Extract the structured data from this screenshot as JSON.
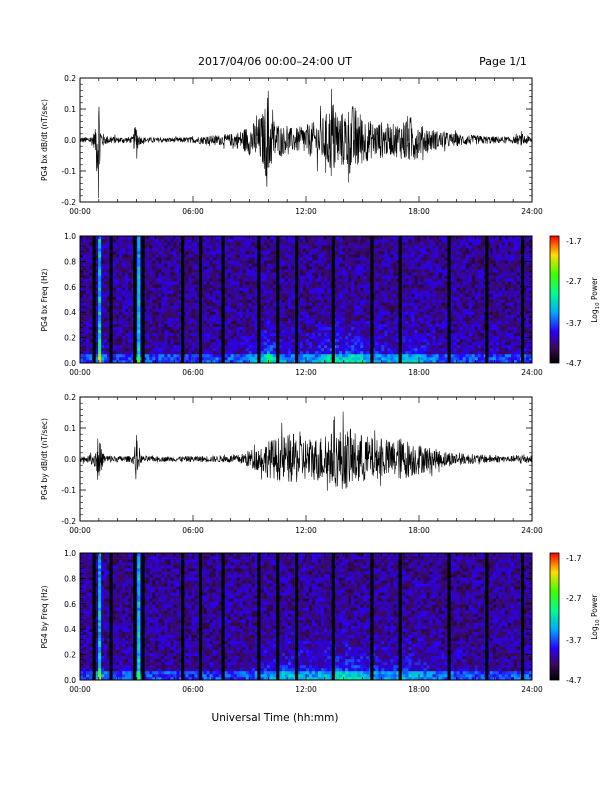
{
  "header": {
    "title": "2017/04/06  00:00–24:00 UT",
    "page": "Page 1/1"
  },
  "time_axis": {
    "ticks": [
      "00:00",
      "06:00",
      "12:00",
      "18:00",
      "24:00"
    ],
    "xlabel": "Universal Time (hh:mm)"
  },
  "colorbar": {
    "tick_labels": [
      "-1.7",
      "-2.7",
      "-3.7",
      "-4.7"
    ],
    "label": "Log10 Power"
  },
  "chart_data": [
    {
      "type": "line",
      "id": "bx-waveform",
      "ylabel": "PG4 bx dB/dt (nT/sec)",
      "xlim_hours": [
        0,
        24
      ],
      "ylim": [
        -0.2,
        0.2
      ],
      "yticks": [
        "0.2",
        "0.1",
        "0.0",
        "-0.1",
        "-0.2"
      ],
      "series": [
        {
          "x_hours": [
            0,
            0.5,
            0.8,
            0.95,
            1.0,
            1.05,
            1.1,
            1.3,
            2,
            2.8,
            3.0,
            3.05,
            3.1,
            3.3,
            4,
            5,
            6,
            6.3,
            7,
            8,
            8.5,
            9,
            9.3,
            9.6,
            9.8,
            9.9,
            10,
            10.1,
            10.3,
            10.6,
            11,
            11.5,
            12,
            12.5,
            13,
            13.2,
            13.4,
            13.6,
            14,
            14.4,
            14.8,
            15,
            15.5,
            16,
            16.5,
            17,
            17.4,
            17.8,
            18,
            18.5,
            19,
            20,
            21,
            22,
            23,
            23.5,
            24
          ],
          "amplitude_envelope": [
            0.01,
            0.01,
            0.03,
            0.18,
            0.2,
            0.12,
            0.04,
            0.015,
            0.01,
            0.01,
            0.07,
            0.05,
            0.02,
            0.01,
            0.008,
            0.008,
            0.01,
            0.012,
            0.015,
            0.02,
            0.03,
            0.05,
            0.06,
            0.08,
            0.1,
            0.15,
            0.18,
            0.1,
            0.07,
            0.05,
            0.04,
            0.04,
            0.05,
            0.06,
            0.08,
            0.1,
            0.14,
            0.1,
            0.09,
            0.12,
            0.1,
            0.08,
            0.06,
            0.06,
            0.05,
            0.06,
            0.08,
            0.07,
            0.05,
            0.04,
            0.03,
            0.02,
            0.015,
            0.012,
            0.01,
            0.02,
            0.01
          ]
        }
      ]
    },
    {
      "type": "heatmap",
      "id": "bx-spectrogram",
      "ylabel": "PG4 bx Freq (Hz)",
      "xlim_hours": [
        0,
        24
      ],
      "ylim": [
        0,
        1.0
      ],
      "yticks": [
        "1.0",
        "0.8",
        "0.6",
        "0.4",
        "0.2",
        "0.0"
      ],
      "zlim": [
        -4.7,
        -1.7
      ],
      "data_gaps_hours": [
        0.75,
        1.65,
        2.9,
        3.35,
        5.45,
        6.4,
        7.6,
        9.5,
        10.5,
        11.5,
        13.45,
        15.5,
        17.0,
        19.6,
        21.6,
        23.5
      ],
      "line_emissions_hours": [
        1.0,
        3.0
      ]
    },
    {
      "type": "line",
      "id": "by-waveform",
      "ylabel": "PG4 by dB/dt (nT/sec)",
      "xlim_hours": [
        0,
        24
      ],
      "ylim": [
        -0.2,
        0.2
      ],
      "yticks": [
        "0.2",
        "0.1",
        "0.0",
        "-0.1",
        "-0.2"
      ],
      "series": [
        {
          "x_hours": [
            0,
            0.5,
            0.8,
            0.95,
            1.0,
            1.1,
            1.3,
            2,
            2.8,
            3.0,
            3.1,
            3.3,
            4,
            5,
            6,
            7,
            8,
            8.5,
            9,
            9.5,
            10,
            10.5,
            11,
            11.5,
            12,
            12.5,
            13,
            13.5,
            14,
            14.5,
            15,
            15.5,
            16,
            16.5,
            17,
            17.5,
            18,
            18.5,
            19,
            20,
            21,
            22,
            23,
            23.5,
            24
          ],
          "amplitude_envelope": [
            0.01,
            0.01,
            0.03,
            0.09,
            0.1,
            0.04,
            0.015,
            0.01,
            0.01,
            0.08,
            0.03,
            0.01,
            0.008,
            0.008,
            0.01,
            0.01,
            0.012,
            0.015,
            0.03,
            0.04,
            0.06,
            0.07,
            0.08,
            0.08,
            0.07,
            0.07,
            0.08,
            0.09,
            0.1,
            0.09,
            0.08,
            0.07,
            0.06,
            0.06,
            0.07,
            0.06,
            0.05,
            0.04,
            0.03,
            0.02,
            0.015,
            0.012,
            0.01,
            0.02,
            0.01
          ]
        }
      ]
    },
    {
      "type": "heatmap",
      "id": "by-spectrogram",
      "ylabel": "PG4 by Freq (Hz)",
      "xlim_hours": [
        0,
        24
      ],
      "ylim": [
        0,
        1.0
      ],
      "yticks": [
        "1.0",
        "0.8",
        "0.6",
        "0.4",
        "0.2",
        "0.0"
      ],
      "zlim": [
        -4.7,
        -1.7
      ],
      "data_gaps_hours": [
        0.75,
        1.65,
        2.9,
        3.35,
        5.45,
        6.4,
        7.6,
        9.5,
        10.5,
        11.5,
        13.45,
        15.5,
        17.0,
        19.6,
        21.6,
        23.5
      ],
      "line_emissions_hours": [
        1.0,
        3.0
      ]
    }
  ]
}
